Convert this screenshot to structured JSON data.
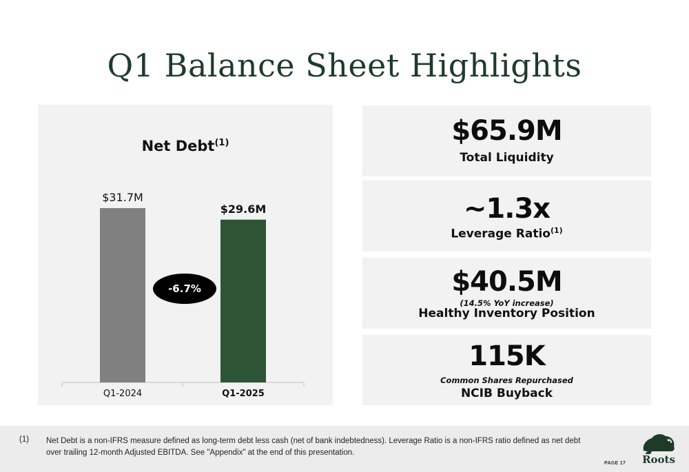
{
  "title": "Q1 Balance Sheet Highlights",
  "chart_data": {
    "type": "bar",
    "title": "Net Debt",
    "title_superscript": "(1)",
    "categories": [
      "Q1-2024",
      "Q1-2025"
    ],
    "values": [
      31.7,
      29.6
    ],
    "value_labels": [
      "$31.7M",
      "$29.6M"
    ],
    "unit": "$M",
    "colors": [
      "#808080",
      "#2d5535"
    ],
    "change_label": "-6.7%",
    "ylim": [
      0,
      31.7
    ]
  },
  "kpis": [
    {
      "value": "$65.9M",
      "label": "Total Liquidity"
    },
    {
      "value": "~1.3x",
      "label": "Leverage Ratio",
      "label_superscript": "(1)"
    },
    {
      "value": "$40.5M",
      "note": "(14.5% YoY increase)",
      "label": "Healthy Inventory Position"
    },
    {
      "value": "115K",
      "note": "Common Shares Repurchased",
      "label": "NCIB Buyback"
    }
  ],
  "footnote": {
    "number": "(1)",
    "text": "Net Debt is a non-IFRS measure defined as long-term debt less cash (net of bank indebtedness). Leverage Ratio is a non-IFRS ratio defined as net debt over trailing 12-month Adjusted EBITDA. See \"Appendix\" at the end of this presentation."
  },
  "page_label": "PAGE 17",
  "brand": {
    "logo_text": "Roots",
    "logo_icon": "beaver-logo-icon",
    "color": "#1e3b2a"
  }
}
